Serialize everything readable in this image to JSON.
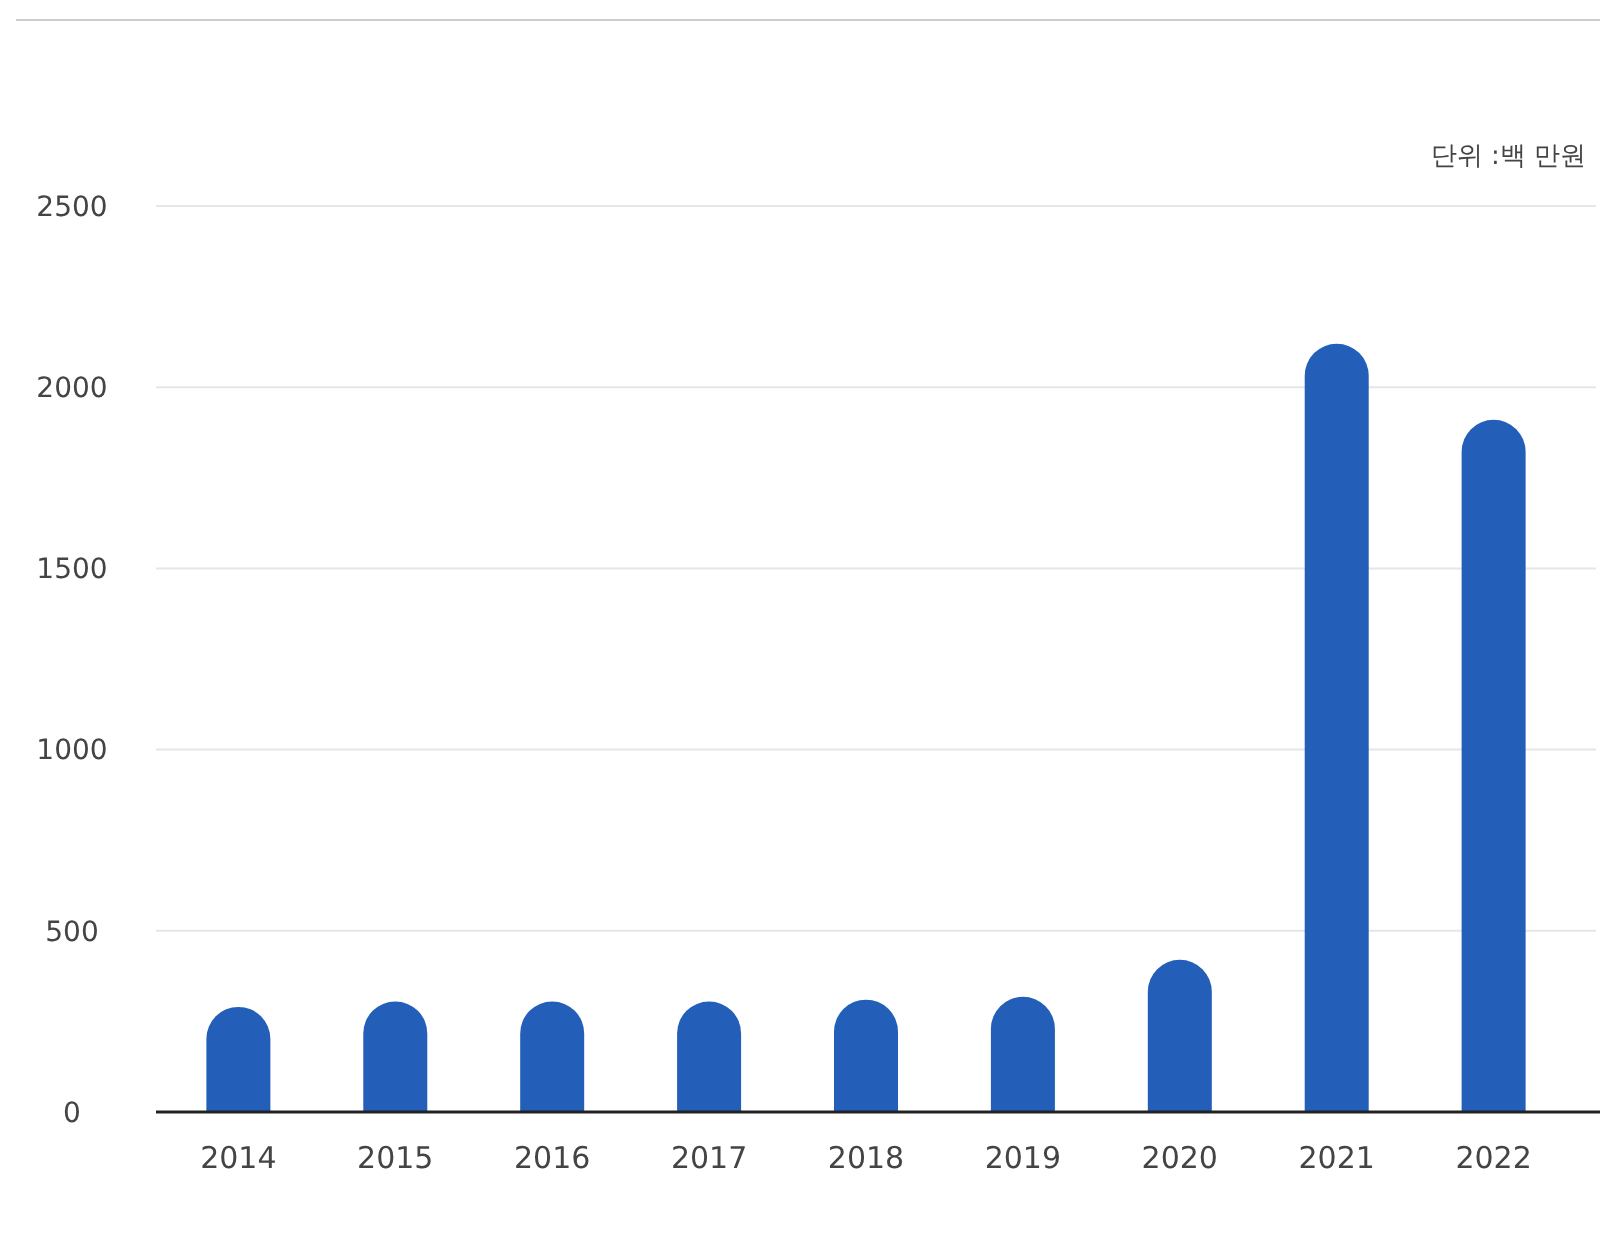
{
  "chart_data": {
    "type": "bar",
    "categories": [
      "2014",
      "2015",
      "2016",
      "2017",
      "2018",
      "2019",
      "2020",
      "2021",
      "2022"
    ],
    "values": [
      290,
      305,
      305,
      305,
      310,
      318,
      420,
      2120,
      1910
    ],
    "color": "#235fb8",
    "ylim": [
      0,
      2500
    ],
    "yticks": [
      0,
      500,
      1000,
      1500,
      2000,
      2500
    ],
    "grid": "y",
    "annotations": [
      "단위 :백 만원"
    ]
  }
}
